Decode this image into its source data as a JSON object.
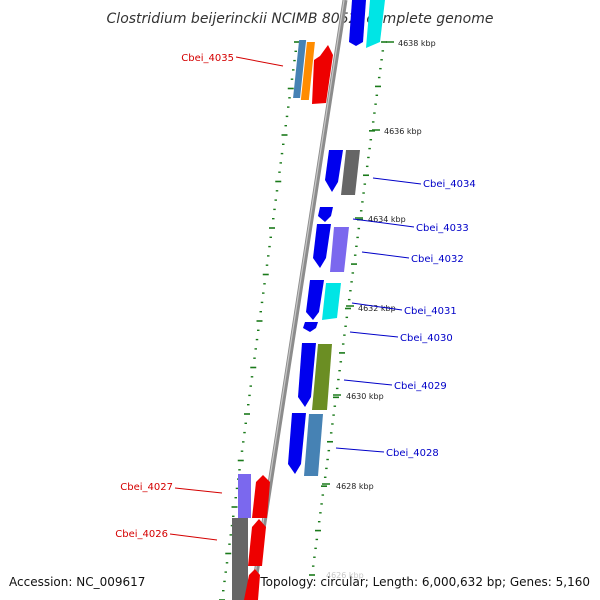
{
  "map": {
    "title": "Clostridium beijerinckii NCIMB 8052, complete genome",
    "accession_text": "Accession: NC_009617",
    "topology_text": "Topology: circular; Length: 6,000,632 bp; Genes: 5,160",
    "colors": {
      "backbone": "#8c8c8c",
      "tick": "#1a7a1a",
      "label_highlight": "#d40000",
      "label_normal": "#0000c8",
      "cds_strand": "#0000ee",
      "red_gene": "#ee0000",
      "orange_gene": "#ff8c00",
      "steelblue_gene": "#4682b4",
      "cyan_gene": "#00e5e5",
      "gray_gene": "#666666",
      "slateblue_gene": "#7b68ee",
      "olive_gene": "#6b8e23"
    },
    "ticks": [
      "4638 kbp",
      "4636 kbp",
      "4634 kbp",
      "4632 kbp",
      "4630 kbp",
      "4628 kbp",
      "4626 kbp"
    ],
    "genes": [
      {
        "id": "Cbei_4035",
        "highlight": true
      },
      {
        "id": "Cbei_4034",
        "highlight": false
      },
      {
        "id": "Cbei_4033",
        "highlight": false
      },
      {
        "id": "Cbei_4032",
        "highlight": false
      },
      {
        "id": "Cbei_4031",
        "highlight": false
      },
      {
        "id": "Cbei_4030",
        "highlight": false
      },
      {
        "id": "Cbei_4029",
        "highlight": false
      },
      {
        "id": "Cbei_4028",
        "highlight": false
      },
      {
        "id": "Cbei_4027",
        "highlight": true
      },
      {
        "id": "Cbei_4026",
        "highlight": true
      }
    ]
  }
}
